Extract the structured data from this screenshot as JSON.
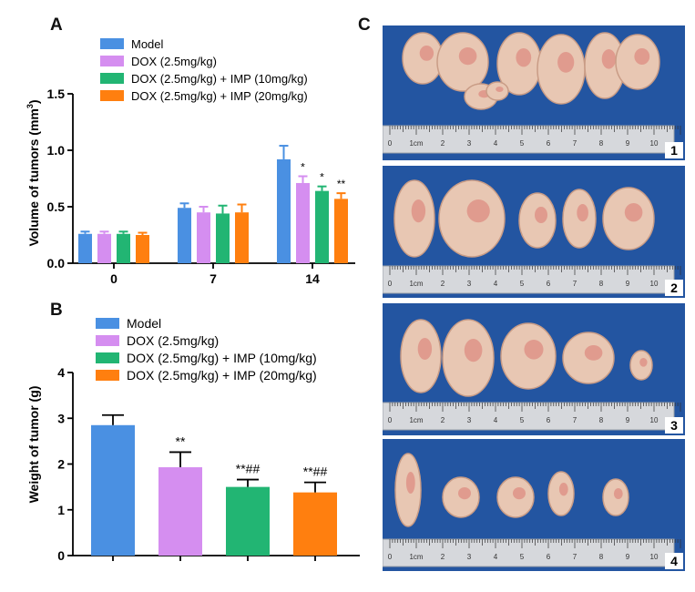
{
  "panels": {
    "a": "A",
    "b": "B",
    "c": "C"
  },
  "colors": {
    "model": "#4a90e2",
    "dox": "#d58ef0",
    "imp10": "#22b573",
    "imp20": "#ff7f0f"
  },
  "chart_data": [
    {
      "type": "bar",
      "panel": "A",
      "ylabel": "Volume of tumors (mm",
      "ylabel_sup": "3",
      "ylabel_close": ")",
      "ylim": [
        0,
        1.5
      ],
      "yticks": [
        "0.0",
        "0.5",
        "1.0",
        "1.5"
      ],
      "categories": [
        "0",
        "7",
        "14"
      ],
      "legend": [
        "Model",
        "DOX (2.5mg/kg)",
        "DOX (2.5mg/kg) + IMP (10mg/kg)",
        "DOX (2.5mg/kg) + IMP (20mg/kg)"
      ],
      "series": [
        {
          "name": "Model",
          "color": "#4a90e2",
          "values": [
            0.26,
            0.49,
            0.92
          ],
          "errors": [
            0.02,
            0.04,
            0.12
          ],
          "labels": [
            "",
            "",
            ""
          ]
        },
        {
          "name": "DOX (2.5mg/kg)",
          "color": "#d58ef0",
          "values": [
            0.26,
            0.45,
            0.71
          ],
          "errors": [
            0.02,
            0.05,
            0.06
          ],
          "labels": [
            "",
            "",
            "*"
          ]
        },
        {
          "name": "DOX (2.5mg/kg) + IMP (10mg/kg)",
          "color": "#22b573",
          "values": [
            0.26,
            0.44,
            0.64
          ],
          "errors": [
            0.02,
            0.07,
            0.04
          ],
          "labels": [
            "",
            "",
            "*"
          ]
        },
        {
          "name": "DOX (2.5mg/kg) + IMP (20mg/kg)",
          "color": "#ff7f0f",
          "values": [
            0.25,
            0.45,
            0.57
          ],
          "errors": [
            0.02,
            0.07,
            0.05
          ],
          "labels": [
            "",
            "",
            "**"
          ]
        }
      ]
    },
    {
      "type": "bar",
      "panel": "B",
      "ylabel": "Weight of tumor (g)",
      "ylim": [
        0,
        4
      ],
      "yticks": [
        "0",
        "1",
        "2",
        "3",
        "4"
      ],
      "legend": [
        "Model",
        "DOX (2.5mg/kg)",
        "DOX (2.5mg/kg) + IMP (10mg/kg)",
        "DOX (2.5mg/kg) + IMP (20mg/kg)"
      ],
      "series": [
        {
          "name": "Model",
          "color": "#4a90e2",
          "value": 2.85,
          "error": 0.22,
          "label": ""
        },
        {
          "name": "DOX (2.5mg/kg)",
          "color": "#d58ef0",
          "value": 1.93,
          "error": 0.33,
          "label": "**"
        },
        {
          "name": "DOX (2.5mg/kg) + IMP (10mg/kg)",
          "color": "#22b573",
          "value": 1.5,
          "error": 0.16,
          "label": "**##"
        },
        {
          "name": "DOX (2.5mg/kg) + IMP (20mg/kg)",
          "color": "#ff7f0f",
          "value": 1.38,
          "error": 0.22,
          "label": "**##"
        }
      ]
    }
  ],
  "photos": {
    "ruler_labels": [
      "0",
      "1cm",
      "2",
      "3",
      "4",
      "5",
      "6",
      "7",
      "8",
      "9",
      "10"
    ],
    "items": [
      {
        "number": "1",
        "tumor_count": 6
      },
      {
        "number": "2",
        "tumor_count": 5
      },
      {
        "number": "3",
        "tumor_count": 5
      },
      {
        "number": "4",
        "tumor_count": 5
      }
    ]
  }
}
